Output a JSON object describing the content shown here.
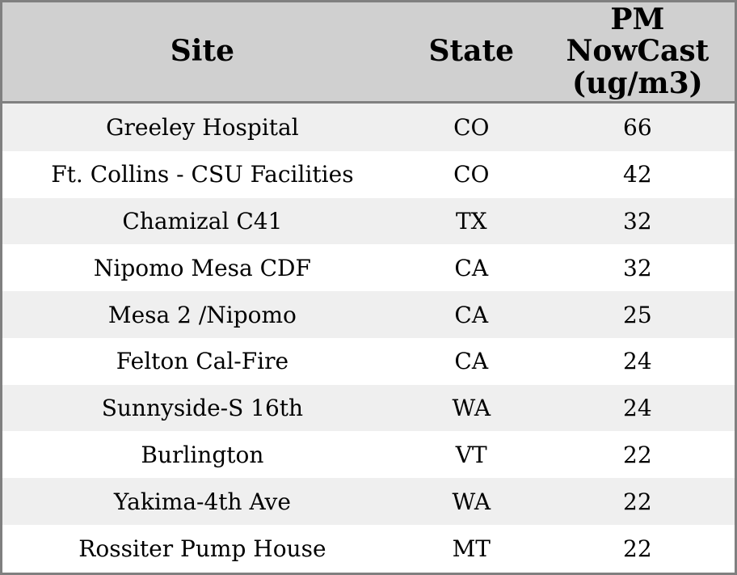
{
  "colors": {
    "header_bg": "#d0d0d0",
    "row_alt_bg": "#efefef",
    "row_bg": "#ffffff",
    "border": "#808080",
    "text": "#000000"
  },
  "chart_data": {
    "type": "table",
    "title": "",
    "columns": [
      "Site",
      "State",
      "PM NowCast (ug/m3)"
    ],
    "rows": [
      [
        "Greeley Hospital",
        "CO",
        66
      ],
      [
        "Ft. Collins - CSU Facilities",
        "CO",
        42
      ],
      [
        "Chamizal C41",
        "TX",
        32
      ],
      [
        "Nipomo Mesa CDF",
        "CA",
        32
      ],
      [
        "Mesa 2 /Nipomo",
        "CA",
        25
      ],
      [
        "Felton Cal-Fire",
        "CA",
        24
      ],
      [
        "Sunnyside-S 16th",
        "WA",
        24
      ],
      [
        "Burlington",
        "VT",
        22
      ],
      [
        "Yakima-4th Ave",
        "WA",
        22
      ],
      [
        "Rossiter Pump House",
        "MT",
        22
      ]
    ],
    "layout": {
      "striped": true,
      "first_data_row_shaded": true,
      "alignment": "center"
    }
  }
}
